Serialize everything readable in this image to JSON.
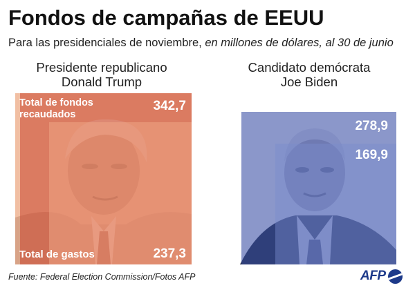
{
  "title": "Fondos de campañas de EEUU",
  "subtitle": {
    "plain": "Para las presidenciales de noviembre, ",
    "italic": "en millones de dólares, al 30 de junio"
  },
  "source": "Fuente: Federal Election Commission/Fotos AFP",
  "logo": {
    "text": "AFP"
  },
  "colors": {
    "republican_raised": "#c9432c",
    "republican_spent": "#eea585",
    "democrat_raised": "#3d51a6",
    "democrat_spent": "#7b8ccb"
  },
  "chart_data": {
    "type": "bar",
    "units": "millones de dólares",
    "categories": [
      "Presidente republicano Donald Trump",
      "Candidato demócrata Joe Biden"
    ],
    "series": [
      {
        "name": "Total de fondos recaudados",
        "values": [
          342.7,
          278.9
        ]
      },
      {
        "name": "Total de gastos",
        "values": [
          237.3,
          169.9
        ]
      }
    ],
    "candidates": [
      {
        "role": "Presidente republicano",
        "name": "Donald Trump",
        "raised": 342.7,
        "spent": 237.3,
        "raised_label": "342,7",
        "spent_label": "237,3",
        "raised_caption": "Total de fondos recaudados",
        "spent_caption": "Total de gastos"
      },
      {
        "role": "Candidato demócrata",
        "name": "Joe Biden",
        "raised": 278.9,
        "spent": 169.9,
        "raised_label": "278,9",
        "spent_label": "169,9"
      }
    ]
  }
}
